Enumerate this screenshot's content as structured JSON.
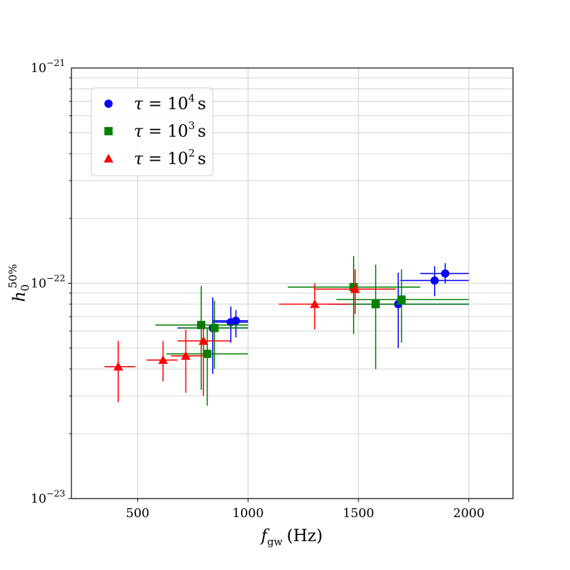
{
  "chart_data": {
    "type": "scatter",
    "title": "",
    "xlabel": "f_gw (Hz)",
    "ylabel": "h_0^50%",
    "xscale": "linear",
    "yscale": "log",
    "xlim": [
      200,
      2200
    ],
    "ylim": [
      1e-23,
      1e-21
    ],
    "grid": true,
    "legend_position": "upper-left",
    "x_ticks": [
      {
        "value": 500,
        "label": "500"
      },
      {
        "value": 1000,
        "label": "1000"
      },
      {
        "value": 1500,
        "label": "1500"
      },
      {
        "value": 2000,
        "label": "2000"
      }
    ],
    "y_ticks": [
      {
        "value": 1e-23,
        "base": "10",
        "exp": "−23"
      },
      {
        "value": 1e-22,
        "base": "10",
        "exp": "−22"
      },
      {
        "value": 1e-21,
        "base": "10",
        "exp": "−21"
      }
    ],
    "series": [
      {
        "name": "τ = 10^4 s",
        "name_base": "τ = 10",
        "name_exp": "4",
        "name_unit": "s",
        "color": "#0000ff",
        "marker": "circle",
        "points": [
          {
            "x": 840,
            "y": 6.2e-23,
            "xerr": [
              680,
              1000
            ],
            "yerr": [
              3.8e-23,
              8.6e-23
            ]
          },
          {
            "x": 922,
            "y": 6.6e-23,
            "xerr": [
              840,
              1000
            ],
            "yerr": [
              5.3e-23,
              7.8e-23
            ]
          },
          {
            "x": 945,
            "y": 6.7e-23,
            "xerr": [
              840,
              1000
            ],
            "yerr": [
              5.6e-23,
              7.5e-23
            ]
          },
          {
            "x": 1680,
            "y": 8e-23,
            "xerr": [
              1360,
              2000
            ],
            "yerr": [
              5e-23,
              1.12e-22
            ]
          },
          {
            "x": 1845,
            "y": 1.03e-22,
            "xerr": [
              1690,
              2000
            ],
            "yerr": [
              8.7e-23,
              1.2e-22
            ]
          },
          {
            "x": 1893,
            "y": 1.11e-22,
            "xerr": [
              1780,
              2000
            ],
            "yerr": [
              1e-22,
              1.24e-22
            ]
          }
        ]
      },
      {
        "name": "τ = 10^3 s",
        "name_base": "τ = 10",
        "name_exp": "3",
        "name_unit": "s",
        "color": "#008000",
        "marker": "square",
        "points": [
          {
            "x": 788,
            "y": 6.4e-23,
            "xerr": [
              580,
              1000
            ],
            "yerr": [
              3.2e-23,
              9.7e-23
            ]
          },
          {
            "x": 815,
            "y": 4.7e-23,
            "xerr": [
              630,
              1000
            ],
            "yerr": [
              2.7e-23,
              6.2e-23
            ]
          },
          {
            "x": 848,
            "y": 6.2e-23,
            "xerr": [
              700,
              1000
            ],
            "yerr": [
              4e-23,
              8.3e-23
            ]
          },
          {
            "x": 1478,
            "y": 9.6e-23,
            "xerr": [
              1180,
              1780
            ],
            "yerr": [
              5.8e-23,
              1.34e-22
            ]
          },
          {
            "x": 1578,
            "y": 8e-23,
            "xerr": [
              1380,
              2000
            ],
            "yerr": [
              4e-23,
              1.22e-22
            ]
          },
          {
            "x": 1695,
            "y": 8.4e-23,
            "xerr": [
              1400,
              2000
            ],
            "yerr": [
              5.3e-23,
              1.16e-22
            ]
          }
        ]
      },
      {
        "name": "τ = 10^2 s",
        "name_base": "τ = 10",
        "name_exp": "2",
        "name_unit": "s",
        "color": "#ff0000",
        "marker": "triangle",
        "points": [
          {
            "x": 412,
            "y": 4.1e-23,
            "xerr": [
              350,
              490
            ],
            "yerr": [
              2.8e-23,
              5.4e-23
            ]
          },
          {
            "x": 615,
            "y": 4.4e-23,
            "xerr": [
              540,
              680
            ],
            "yerr": [
              3.5e-23,
              5.4e-23
            ]
          },
          {
            "x": 718,
            "y": 4.6e-23,
            "xerr": [
              650,
              800
            ],
            "yerr": [
              3.1e-23,
              6.1e-23
            ]
          },
          {
            "x": 798,
            "y": 5.4e-23,
            "xerr": [
              680,
              920
            ],
            "yerr": [
              3e-23,
              6.4e-23
            ]
          },
          {
            "x": 1302,
            "y": 8e-23,
            "xerr": [
              1140,
              1460
            ],
            "yerr": [
              6.1e-23,
              1e-22
            ]
          },
          {
            "x": 1485,
            "y": 9.4e-23,
            "xerr": [
              1300,
              1670
            ],
            "yerr": [
              7.2e-23,
              1.16e-22
            ]
          }
        ]
      }
    ]
  }
}
